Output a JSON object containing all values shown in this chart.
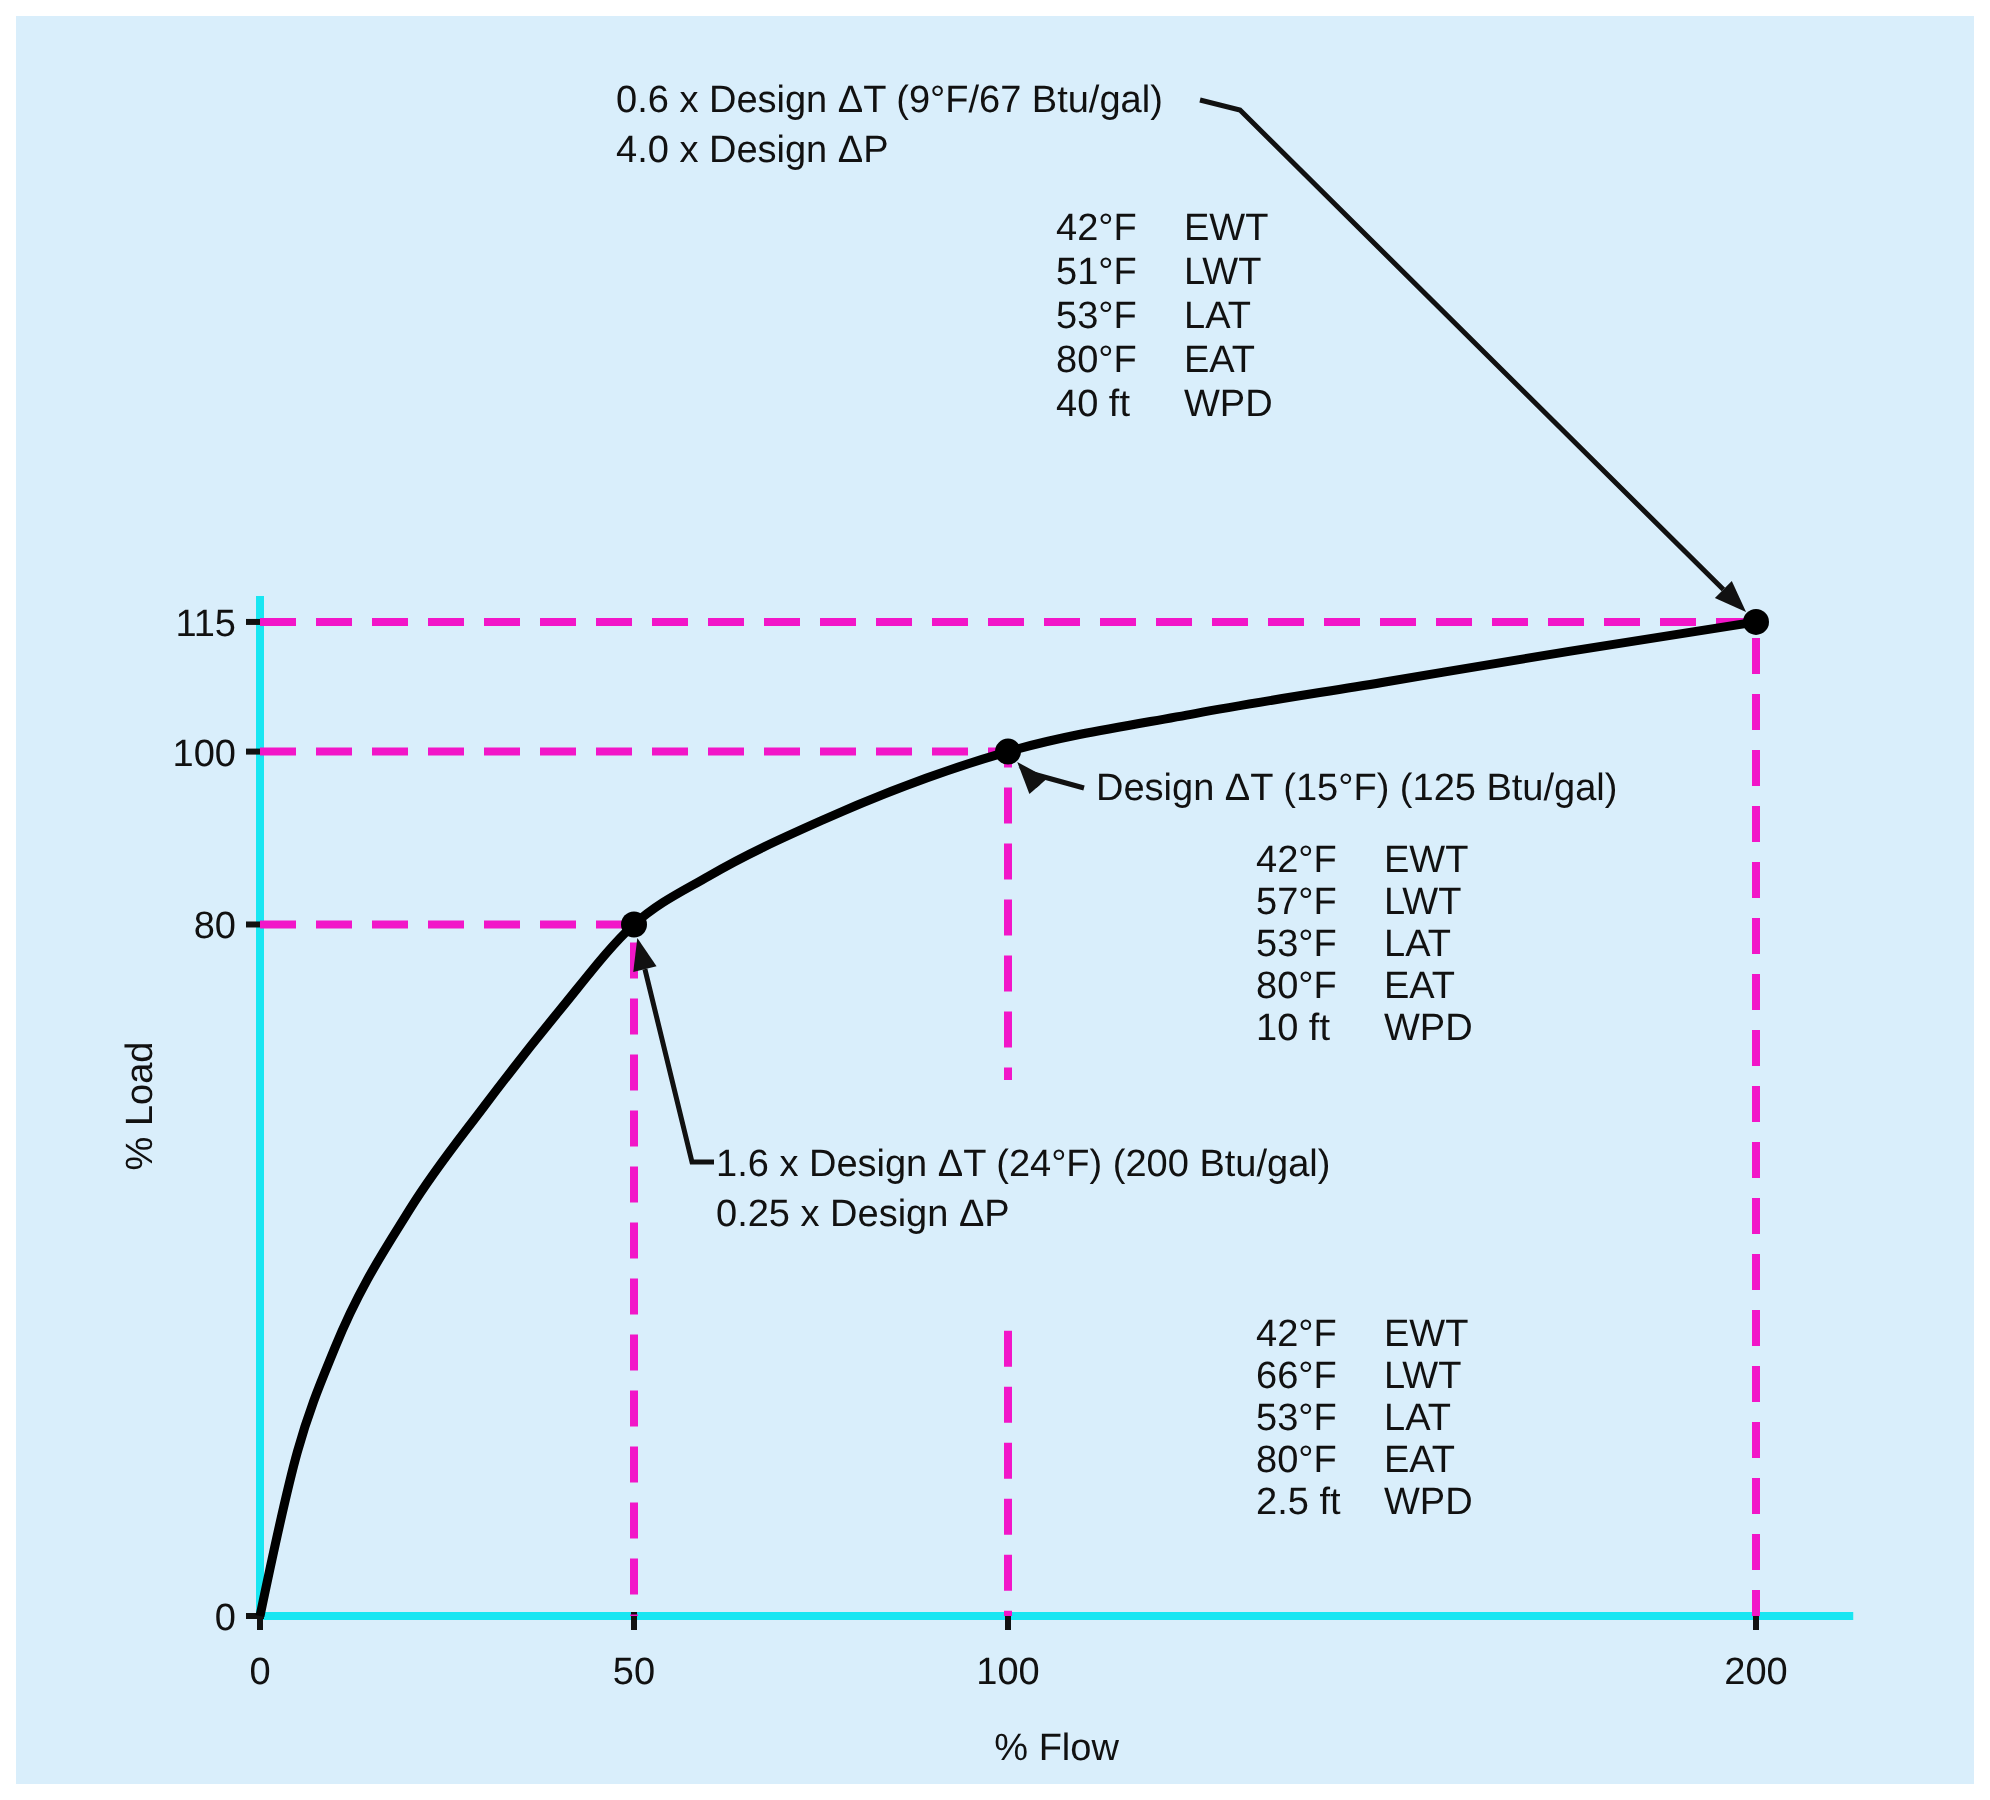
{
  "chart_data": {
    "type": "line",
    "xlabel": "% Flow",
    "ylabel": "% Load",
    "xlim": [
      0,
      213
    ],
    "ylim": [
      0,
      118
    ],
    "xticks": [
      0,
      50,
      100,
      200
    ],
    "yticks": [
      0,
      80,
      100,
      115
    ],
    "grid": false,
    "series": [
      {
        "color": "#f216c8",
        "line_style": "dashed",
        "marker": "none",
        "x": [
          0,
          50,
          50
        ],
        "values": [
          80,
          80,
          0
        ]
      },
      {
        "color": "#f216c8",
        "line_style": "dashed",
        "marker": "none",
        "x": [
          0,
          100,
          100
        ],
        "values": [
          100,
          100,
          62
        ]
      },
      {
        "color": "#f216c8",
        "line_style": "dashed",
        "marker": "none",
        "x": [
          100,
          100
        ],
        "values": [
          33,
          0
        ]
      },
      {
        "color": "#f216c8",
        "line_style": "dashed",
        "marker": "none",
        "x": [
          0,
          200,
          200
        ],
        "values": [
          115,
          115,
          0
        ]
      },
      {
        "color": "#000000",
        "line_style": "solid",
        "marker": "none",
        "x": [
          0,
          5,
          10,
          20,
          30,
          40,
          50,
          60,
          75,
          100,
          125,
          150,
          175,
          200
        ],
        "values": [
          0,
          19,
          31,
          47,
          59,
          70,
          80,
          85.6,
          92,
          100,
          104.4,
          108,
          111.6,
          115
        ]
      },
      {
        "type": "scatter",
        "color": "#000000",
        "marker": "circle",
        "x": [
          50,
          100,
          200
        ],
        "values": [
          80,
          100,
          115
        ]
      }
    ],
    "annotations": [
      "0.6 x Design ΔT (9°F/67 Btu/gal)\n4.0 x Design ΔP",
      "42°F  EWT\n51°F  LWT\n53°F  LAT\n80°F  EAT\n40 ft  WPD",
      {
        "text": "Design ΔT (15°F) (125 Btu/gal)",
        "x": 100,
        "y": 100
      },
      "42°F  EWT\n57°F  LWT\n53°F  LAT\n80°F  EAT\n10 ft  WPD",
      "1.6 x Design ΔT (24°F) (200 Btu/gal)\n0.25 x Design ΔP",
      "42°F  EWT\n66°F  LWT\n53°F  LAT\n80°F  EAT\n2.5 ft  WPD"
    ]
  }
}
